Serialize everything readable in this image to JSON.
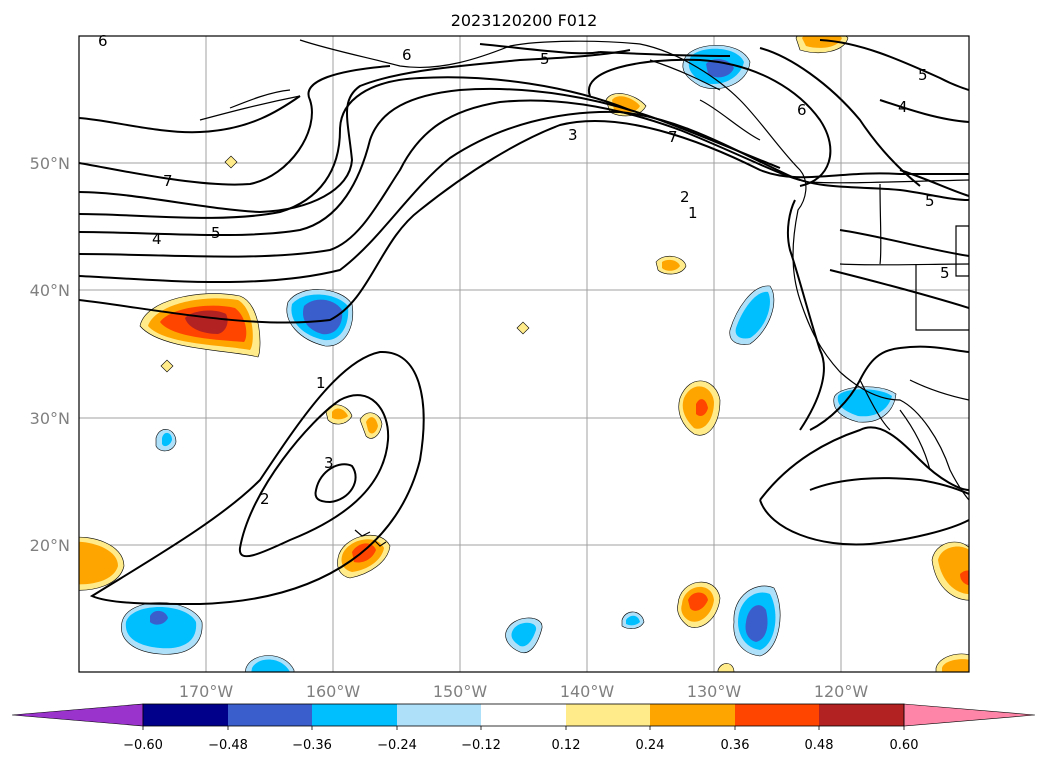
{
  "title": "2023120200 F012",
  "lat_labels": [
    "50°N",
    "40°N",
    "30°N",
    "20°N"
  ],
  "lon_labels": [
    "170°W",
    "160°W",
    "150°W",
    "140°W",
    "130°W",
    "120°W"
  ],
  "colorbar": {
    "tick_labels": [
      "−0.60",
      "−0.48",
      "−0.36",
      "−0.24",
      "−0.12",
      "0.12",
      "0.24",
      "0.36",
      "0.48",
      "0.60"
    ],
    "colors": [
      "#9933cc",
      "#00008b",
      "#3a5fcd",
      "#00bfff",
      "#afe0fa",
      "#ffffff",
      "#ffeb8a",
      "#ffa500",
      "#ff4500",
      "#b22222",
      "#ff85a8"
    ]
  },
  "contour_labels": [
    "6",
    "6",
    "5",
    "5",
    "4",
    "5",
    "7",
    "4",
    "5",
    "3",
    "7",
    "6",
    "2",
    "1",
    "5",
    "1",
    "2",
    "3"
  ],
  "colors": {
    "axis": "#000000",
    "grid": "#a0a0a0",
    "tick_text": "#808080"
  }
}
